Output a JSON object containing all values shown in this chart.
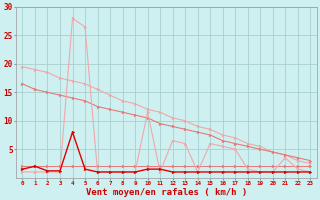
{
  "x": [
    0,
    1,
    2,
    3,
    4,
    5,
    6,
    7,
    8,
    9,
    10,
    11,
    12,
    13,
    14,
    15,
    16,
    17,
    18,
    19,
    20,
    21,
    22,
    23
  ],
  "line_spike_light": [
    1.0,
    1.0,
    1.0,
    1.0,
    28.0,
    26.5,
    1.0,
    1.0,
    1.0,
    1.0,
    11.5,
    1.0,
    6.5,
    6.0,
    1.0,
    6.0,
    5.5,
    5.0,
    1.5,
    1.0,
    1.0,
    3.5,
    1.5,
    1.0
  ],
  "line_spike_dark": [
    1.5,
    2.0,
    1.2,
    1.2,
    8.0,
    1.5,
    1.0,
    1.0,
    1.0,
    1.0,
    1.5,
    1.5,
    1.0,
    1.0,
    1.0,
    1.0,
    1.0,
    1.0,
    1.0,
    1.0,
    1.0,
    1.0,
    1.0,
    1.0
  ],
  "line_diag1": [
    19.5,
    19.0,
    18.5,
    17.5,
    17.0,
    16.5,
    15.5,
    14.5,
    13.5,
    13.0,
    12.0,
    11.5,
    10.5,
    10.0,
    9.0,
    8.5,
    7.5,
    7.0,
    6.0,
    5.5,
    4.5,
    4.0,
    3.0,
    2.5
  ],
  "line_diag2": [
    16.5,
    15.5,
    15.0,
    14.5,
    14.0,
    13.5,
    12.5,
    12.0,
    11.5,
    11.0,
    10.5,
    9.5,
    9.0,
    8.5,
    8.0,
    7.5,
    6.5,
    6.0,
    5.5,
    5.0,
    4.5,
    4.0,
    3.5,
    3.0
  ],
  "line_flat": [
    2.0,
    2.0,
    2.0,
    2.0,
    2.0,
    2.0,
    2.0,
    2.0,
    2.0,
    2.0,
    2.0,
    2.0,
    2.0,
    2.0,
    2.0,
    2.0,
    2.0,
    2.0,
    2.0,
    2.0,
    2.0,
    2.0,
    2.0,
    2.0
  ],
  "bg_color": "#cef0f0",
  "grid_color": "#aacfcf",
  "color_dark_red": "#dd0000",
  "color_mid_red": "#e87878",
  "color_light_red": "#f0a8a8",
  "xlabel": "Vent moyen/en rafales ( km/h )",
  "xlabel_color": "#cc0000",
  "tick_color": "#cc0000",
  "ylim": [
    0,
    30
  ],
  "xlim_min": -0.5,
  "xlim_max": 23.5
}
